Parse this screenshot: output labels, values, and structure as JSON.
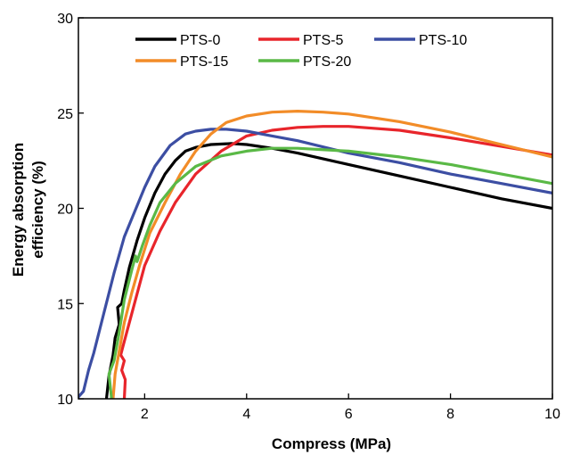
{
  "chart_data": {
    "type": "line",
    "xlabel": "Compress (MPa)",
    "ylabel_line1": "Energy absorption",
    "ylabel_line2": "efficiency (%)",
    "xlim": [
      0.7,
      10
    ],
    "ylim": [
      10,
      30
    ],
    "xticks": [
      2,
      4,
      6,
      8,
      10
    ],
    "yticks": [
      10,
      15,
      20,
      25,
      30
    ],
    "grid": false,
    "legend_position": "top",
    "series": [
      {
        "name": "PTS-0",
        "color": "#000000",
        "x": [
          1.25,
          1.3,
          1.38,
          1.42,
          1.5,
          1.47,
          1.55,
          1.6,
          1.7,
          1.85,
          2.0,
          2.2,
          2.4,
          2.6,
          2.8,
          3.0,
          3.3,
          3.7,
          4.0,
          4.5,
          5.0,
          6.0,
          7.0,
          8.0,
          9.0,
          10.0
        ],
        "y": [
          10.0,
          11.2,
          12.3,
          13.2,
          13.9,
          14.8,
          15.0,
          15.7,
          16.9,
          18.3,
          19.5,
          20.8,
          21.8,
          22.5,
          23.0,
          23.2,
          23.35,
          23.4,
          23.35,
          23.15,
          22.9,
          22.3,
          21.7,
          21.1,
          20.5,
          20.0
        ]
      },
      {
        "name": "PTS-5",
        "color": "#e8252b",
        "x": [
          1.6,
          1.62,
          1.55,
          1.6,
          1.53,
          1.58,
          1.65,
          1.8,
          2.0,
          2.3,
          2.6,
          3.0,
          3.5,
          4.0,
          4.5,
          5.0,
          5.5,
          6.0,
          7.0,
          8.0,
          9.0,
          10.0
        ],
        "y": [
          10.0,
          11.0,
          11.5,
          12.0,
          12.3,
          12.8,
          13.5,
          15.0,
          17.0,
          18.8,
          20.3,
          21.8,
          23.0,
          23.8,
          24.1,
          24.25,
          24.3,
          24.3,
          24.1,
          23.7,
          23.25,
          22.8
        ]
      },
      {
        "name": "PTS-10",
        "color": "#3c4ea3",
        "x": [
          0.7,
          0.8,
          0.9,
          1.0,
          1.2,
          1.4,
          1.6,
          1.8,
          2.0,
          2.2,
          2.5,
          2.8,
          3.0,
          3.3,
          3.6,
          4.0,
          4.5,
          5.0,
          6.0,
          7.0,
          8.0,
          9.0,
          10.0
        ],
        "y": [
          10.1,
          10.4,
          11.5,
          12.4,
          14.5,
          16.6,
          18.5,
          19.8,
          21.1,
          22.2,
          23.3,
          23.9,
          24.05,
          24.15,
          24.15,
          24.05,
          23.8,
          23.55,
          22.9,
          22.4,
          21.8,
          21.3,
          20.8
        ]
      },
      {
        "name": "PTS-15",
        "color": "#f28c28",
        "x": [
          1.38,
          1.42,
          1.5,
          1.6,
          1.75,
          1.9,
          2.1,
          2.4,
          2.7,
          3.0,
          3.3,
          3.6,
          4.0,
          4.5,
          5.0,
          5.5,
          6.0,
          7.0,
          8.0,
          9.0,
          10.0
        ],
        "y": [
          10.0,
          11.3,
          12.5,
          14.0,
          15.6,
          17.0,
          18.7,
          20.3,
          21.8,
          23.0,
          23.9,
          24.5,
          24.85,
          25.05,
          25.1,
          25.05,
          24.95,
          24.55,
          24.0,
          23.35,
          22.7
        ]
      },
      {
        "name": "PTS-20",
        "color": "#5ab946",
        "x": [
          1.35,
          1.3,
          1.4,
          1.5,
          1.6,
          1.75,
          1.82,
          1.85,
          1.95,
          2.1,
          2.3,
          2.6,
          3.0,
          3.5,
          4.0,
          4.5,
          5.0,
          6.0,
          7.0,
          8.0,
          9.0,
          10.0
        ],
        "y": [
          10.0,
          11.3,
          12.0,
          13.5,
          15.2,
          16.8,
          17.5,
          17.2,
          18.0,
          19.1,
          20.3,
          21.3,
          22.2,
          22.75,
          23.0,
          23.15,
          23.15,
          23.0,
          22.7,
          22.3,
          21.8,
          21.3
        ]
      }
    ]
  }
}
